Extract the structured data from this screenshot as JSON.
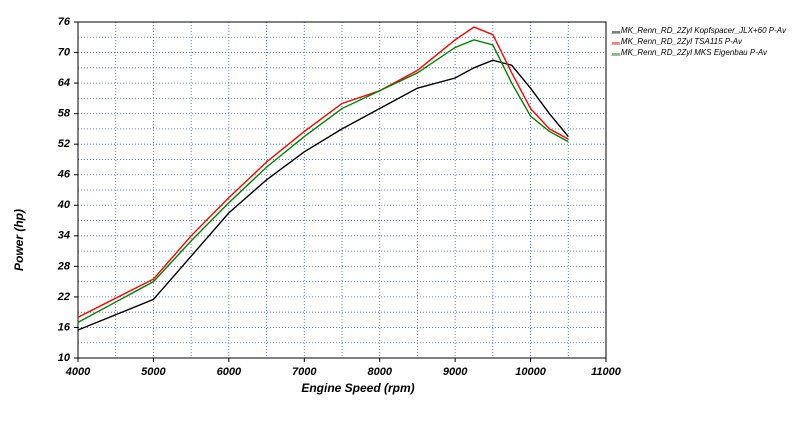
{
  "chart_data": {
    "type": "line",
    "x_label": "Engine Speed (rpm)",
    "y_label": "Power (hp)",
    "x": [
      4000,
      5000,
      5500,
      6000,
      6500,
      7000,
      7500,
      8000,
      8500,
      9000,
      9250,
      9500,
      9750,
      10000,
      10250,
      10500
    ],
    "series": [
      {
        "name": "__MK_Renn_RD_2Zyl Kopfspacer_JLX+60  P-Av",
        "color": "#000000",
        "values": [
          15.5,
          21.5,
          30,
          38.5,
          45,
          50.5,
          55,
          59,
          63,
          65,
          67,
          68.5,
          67.5,
          63,
          58,
          53.5
        ]
      },
      {
        "name": "__MK_Renn_RD_2Zyl TSA115  P-Av",
        "color": "#ff0000",
        "values": [
          18,
          25.5,
          34,
          41.5,
          48.5,
          54.5,
          60,
          62.5,
          66.5,
          72.5,
          75,
          73.5,
          66,
          59,
          55,
          53
        ]
      },
      {
        "name": "__MK_Renn_RD_2Zyl MKS Eigenbau  P-Av",
        "color": "#008000",
        "values": [
          17,
          25,
          33,
          40.5,
          47.5,
          53.5,
          59,
          62.5,
          66,
          71,
          72.5,
          71.5,
          64,
          57.5,
          54.5,
          52.5
        ]
      }
    ],
    "xlim": [
      4000,
      11000
    ],
    "xticks": [
      4000,
      5000,
      6000,
      7000,
      8000,
      9000,
      10000,
      11000
    ],
    "ylim": [
      10,
      76
    ],
    "yticks": [
      10,
      16,
      22,
      28,
      34,
      40,
      46,
      52,
      58,
      64,
      70,
      76
    ],
    "grid": true
  }
}
